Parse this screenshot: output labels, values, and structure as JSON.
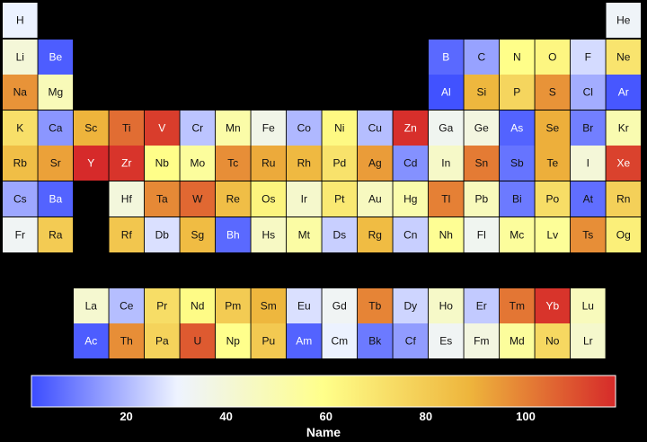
{
  "chart_data": {
    "type": "heatmap",
    "title": "",
    "colorbar": {
      "label": "Name",
      "ticks": [
        20,
        40,
        60,
        80,
        100
      ],
      "range": [
        1,
        118
      ],
      "colorscale": [
        "#3b4cff",
        "#eef3ff",
        "#ffff8a",
        "#eeb53c",
        "#d62a2a"
      ]
    },
    "elements": [
      {
        "symbol": "H",
        "row": 1,
        "col": 1,
        "value": 30
      },
      {
        "symbol": "He",
        "row": 1,
        "col": 18,
        "value": 32
      },
      {
        "symbol": "Li",
        "row": 2,
        "col": 1,
        "value": 40
      },
      {
        "symbol": "Be",
        "row": 2,
        "col": 2,
        "value": 4
      },
      {
        "symbol": "B",
        "row": 2,
        "col": 13,
        "value": 6
      },
      {
        "symbol": "C",
        "row": 2,
        "col": 14,
        "value": 16
      },
      {
        "symbol": "N",
        "row": 2,
        "col": 15,
        "value": 60
      },
      {
        "symbol": "O",
        "row": 2,
        "col": 16,
        "value": 63
      },
      {
        "symbol": "F",
        "row": 2,
        "col": 17,
        "value": 26
      },
      {
        "symbol": "Ne",
        "row": 2,
        "col": 18,
        "value": 70
      },
      {
        "symbol": "Na",
        "row": 3,
        "col": 1,
        "value": 96
      },
      {
        "symbol": "Mg",
        "row": 3,
        "col": 2,
        "value": 48
      },
      {
        "symbol": "Al",
        "row": 3,
        "col": 13,
        "value": 2
      },
      {
        "symbol": "Si",
        "row": 3,
        "col": 14,
        "value": 88
      },
      {
        "symbol": "P",
        "row": 3,
        "col": 15,
        "value": 76
      },
      {
        "symbol": "S",
        "row": 3,
        "col": 16,
        "value": 96
      },
      {
        "symbol": "Cl",
        "row": 3,
        "col": 17,
        "value": 18
      },
      {
        "symbol": "Ar",
        "row": 3,
        "col": 18,
        "value": 3
      },
      {
        "symbol": "K",
        "row": 4,
        "col": 1,
        "value": 72
      },
      {
        "symbol": "Ca",
        "row": 4,
        "col": 2,
        "value": 14
      },
      {
        "symbol": "Sc",
        "row": 4,
        "col": 3,
        "value": 89
      },
      {
        "symbol": "Ti",
        "row": 4,
        "col": 4,
        "value": 104
      },
      {
        "symbol": "V",
        "row": 4,
        "col": 5,
        "value": 114
      },
      {
        "symbol": "Cr",
        "row": 4,
        "col": 6,
        "value": 22
      },
      {
        "symbol": "Mn",
        "row": 4,
        "col": 7,
        "value": 52
      },
      {
        "symbol": "Fe",
        "row": 4,
        "col": 8,
        "value": 36
      },
      {
        "symbol": "Co",
        "row": 4,
        "col": 9,
        "value": 20
      },
      {
        "symbol": "Ni",
        "row": 4,
        "col": 10,
        "value": 62
      },
      {
        "symbol": "Cu",
        "row": 4,
        "col": 11,
        "value": 21
      },
      {
        "symbol": "Zn",
        "row": 4,
        "col": 12,
        "value": 117
      },
      {
        "symbol": "Ga",
        "row": 4,
        "col": 13,
        "value": 34
      },
      {
        "symbol": "Ge",
        "row": 4,
        "col": 14,
        "value": 38
      },
      {
        "symbol": "As",
        "row": 4,
        "col": 15,
        "value": 5
      },
      {
        "symbol": "Se",
        "row": 4,
        "col": 16,
        "value": 90
      },
      {
        "symbol": "Br",
        "row": 4,
        "col": 17,
        "value": 10
      },
      {
        "symbol": "Kr",
        "row": 4,
        "col": 18,
        "value": 50
      },
      {
        "symbol": "Rb",
        "row": 5,
        "col": 1,
        "value": 85
      },
      {
        "symbol": "Sr",
        "row": 5,
        "col": 2,
        "value": 93
      },
      {
        "symbol": "Y",
        "row": 5,
        "col": 3,
        "value": 118
      },
      {
        "symbol": "Zr",
        "row": 5,
        "col": 4,
        "value": 116
      },
      {
        "symbol": "Nb",
        "row": 5,
        "col": 5,
        "value": 60
      },
      {
        "symbol": "Mo",
        "row": 5,
        "col": 6,
        "value": 55
      },
      {
        "symbol": "Tc",
        "row": 5,
        "col": 7,
        "value": 97
      },
      {
        "symbol": "Ru",
        "row": 5,
        "col": 8,
        "value": 91
      },
      {
        "symbol": "Rh",
        "row": 5,
        "col": 9,
        "value": 87
      },
      {
        "symbol": "Pd",
        "row": 5,
        "col": 10,
        "value": 71
      },
      {
        "symbol": "Ag",
        "row": 5,
        "col": 11,
        "value": 94
      },
      {
        "symbol": "Cd",
        "row": 5,
        "col": 12,
        "value": 13
      },
      {
        "symbol": "In",
        "row": 5,
        "col": 13,
        "value": 44
      },
      {
        "symbol": "Sn",
        "row": 5,
        "col": 14,
        "value": 101
      },
      {
        "symbol": "Sb",
        "row": 5,
        "col": 15,
        "value": 8
      },
      {
        "symbol": "Te",
        "row": 5,
        "col": 16,
        "value": 90
      },
      {
        "symbol": "I",
        "row": 5,
        "col": 17,
        "value": 40
      },
      {
        "symbol": "Xe",
        "row": 5,
        "col": 18,
        "value": 113
      },
      {
        "symbol": "Cs",
        "row": 6,
        "col": 1,
        "value": 17
      },
      {
        "symbol": "Ba",
        "row": 6,
        "col": 2,
        "value": 5
      },
      {
        "symbol": "Hf",
        "row": 6,
        "col": 4,
        "value": 39
      },
      {
        "symbol": "Ta",
        "row": 6,
        "col": 5,
        "value": 98
      },
      {
        "symbol": "W",
        "row": 6,
        "col": 6,
        "value": 105
      },
      {
        "symbol": "Re",
        "row": 6,
        "col": 7,
        "value": 85
      },
      {
        "symbol": "Os",
        "row": 6,
        "col": 8,
        "value": 64
      },
      {
        "symbol": "Ir",
        "row": 6,
        "col": 9,
        "value": 43
      },
      {
        "symbol": "Pt",
        "row": 6,
        "col": 10,
        "value": 68
      },
      {
        "symbol": "Au",
        "row": 6,
        "col": 11,
        "value": 46
      },
      {
        "symbol": "Hg",
        "row": 6,
        "col": 12,
        "value": 51
      },
      {
        "symbol": "Tl",
        "row": 6,
        "col": 13,
        "value": 100
      },
      {
        "symbol": "Pb",
        "row": 6,
        "col": 14,
        "value": 47
      },
      {
        "symbol": "Bi",
        "row": 6,
        "col": 15,
        "value": 9
      },
      {
        "symbol": "Po",
        "row": 6,
        "col": 16,
        "value": 73
      },
      {
        "symbol": "At",
        "row": 6,
        "col": 17,
        "value": 7
      },
      {
        "symbol": "Rn",
        "row": 6,
        "col": 18,
        "value": 78
      },
      {
        "symbol": "Fr",
        "row": 7,
        "col": 1,
        "value": 33
      },
      {
        "symbol": "Ra",
        "row": 7,
        "col": 2,
        "value": 80
      },
      {
        "symbol": "Rf",
        "row": 7,
        "col": 4,
        "value": 82
      },
      {
        "symbol": "Db",
        "row": 7,
        "col": 5,
        "value": 27
      },
      {
        "symbol": "Sg",
        "row": 7,
        "col": 6,
        "value": 86
      },
      {
        "symbol": "Bh",
        "row": 7,
        "col": 7,
        "value": 6
      },
      {
        "symbol": "Hs",
        "row": 7,
        "col": 8,
        "value": 45
      },
      {
        "symbol": "Mt",
        "row": 7,
        "col": 9,
        "value": 53
      },
      {
        "symbol": "Ds",
        "row": 7,
        "col": 10,
        "value": 24
      },
      {
        "symbol": "Rg",
        "row": 7,
        "col": 11,
        "value": 86
      },
      {
        "symbol": "Cn",
        "row": 7,
        "col": 12,
        "value": 24
      },
      {
        "symbol": "Nh",
        "row": 7,
        "col": 13,
        "value": 57
      },
      {
        "symbol": "Fl",
        "row": 7,
        "col": 14,
        "value": 34
      },
      {
        "symbol": "Mc",
        "row": 7,
        "col": 15,
        "value": 55
      },
      {
        "symbol": "Lv",
        "row": 7,
        "col": 16,
        "value": 56
      },
      {
        "symbol": "Ts",
        "row": 7,
        "col": 17,
        "value": 97
      },
      {
        "symbol": "Og",
        "row": 7,
        "col": 18,
        "value": 66
      },
      {
        "symbol": "La",
        "row": 9,
        "col": 3,
        "value": 42
      },
      {
        "symbol": "Ce",
        "row": 9,
        "col": 4,
        "value": 21
      },
      {
        "symbol": "Pr",
        "row": 9,
        "col": 5,
        "value": 73
      },
      {
        "symbol": "Nd",
        "row": 9,
        "col": 6,
        "value": 61
      },
      {
        "symbol": "Pm",
        "row": 9,
        "col": 7,
        "value": 80
      },
      {
        "symbol": "Sm",
        "row": 9,
        "col": 8,
        "value": 88
      },
      {
        "symbol": "Eu",
        "row": 9,
        "col": 9,
        "value": 27
      },
      {
        "symbol": "Gd",
        "row": 9,
        "col": 10,
        "value": 33
      },
      {
        "symbol": "Tb",
        "row": 9,
        "col": 11,
        "value": 99
      },
      {
        "symbol": "Dy",
        "row": 9,
        "col": 12,
        "value": 25
      },
      {
        "symbol": "Ho",
        "row": 9,
        "col": 13,
        "value": 44
      },
      {
        "symbol": "Er",
        "row": 9,
        "col": 14,
        "value": 23
      },
      {
        "symbol": "Tm",
        "row": 9,
        "col": 15,
        "value": 102
      },
      {
        "symbol": "Yb",
        "row": 9,
        "col": 16,
        "value": 116
      },
      {
        "symbol": "Lu",
        "row": 9,
        "col": 17,
        "value": 47
      },
      {
        "symbol": "Ac",
        "row": 10,
        "col": 3,
        "value": 4
      },
      {
        "symbol": "Th",
        "row": 10,
        "col": 4,
        "value": 97
      },
      {
        "symbol": "Pa",
        "row": 10,
        "col": 5,
        "value": 77
      },
      {
        "symbol": "U",
        "row": 10,
        "col": 6,
        "value": 108
      },
      {
        "symbol": "Np",
        "row": 10,
        "col": 7,
        "value": 59
      },
      {
        "symbol": "Pu",
        "row": 10,
        "col": 8,
        "value": 81
      },
      {
        "symbol": "Am",
        "row": 10,
        "col": 9,
        "value": 5
      },
      {
        "symbol": "Cm",
        "row": 10,
        "col": 10,
        "value": 30
      },
      {
        "symbol": "Bk",
        "row": 10,
        "col": 11,
        "value": 9
      },
      {
        "symbol": "Cf",
        "row": 10,
        "col": 12,
        "value": 15
      },
      {
        "symbol": "Es",
        "row": 10,
        "col": 13,
        "value": 33
      },
      {
        "symbol": "Fm",
        "row": 10,
        "col": 14,
        "value": 38
      },
      {
        "symbol": "Md",
        "row": 10,
        "col": 15,
        "value": 55
      },
      {
        "symbol": "No",
        "row": 10,
        "col": 16,
        "value": 75
      },
      {
        "symbol": "Lr",
        "row": 10,
        "col": 17,
        "value": 43
      }
    ]
  }
}
